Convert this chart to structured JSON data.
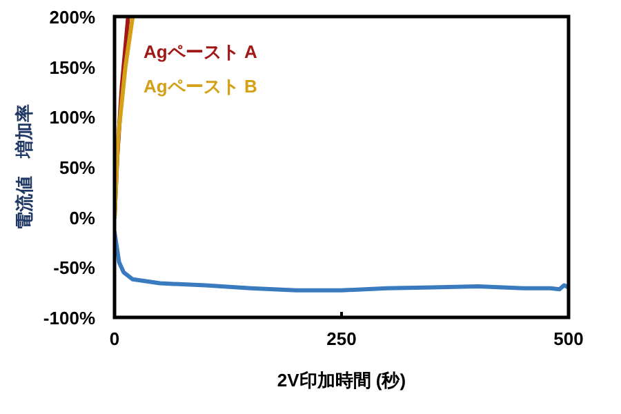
{
  "chart_data": {
    "type": "line",
    "xlabel": "2V印加時間 (秒)",
    "ylabel": "電流値　増加率",
    "xlim": [
      0,
      500
    ],
    "ylim": [
      -100,
      200
    ],
    "xticks": [
      0,
      250,
      500
    ],
    "yticks": [
      {
        "value": -100,
        "label": "-100%"
      },
      {
        "value": -50,
        "label": "-50%"
      },
      {
        "value": 0,
        "label": "0%"
      },
      {
        "value": 50,
        "label": "50%"
      },
      {
        "value": 100,
        "label": "100%"
      },
      {
        "value": 150,
        "label": "150%"
      },
      {
        "value": 200,
        "label": "200%"
      }
    ],
    "grid": false,
    "series": [
      {
        "name": "Agペースト A",
        "color": "#a01818",
        "x": [
          0,
          3,
          8,
          15
        ],
        "values": [
          0,
          60,
          130,
          200
        ]
      },
      {
        "name": "Agペースト B",
        "color": "#d4a017",
        "x": [
          0,
          4,
          12,
          20
        ],
        "values": [
          0,
          80,
          150,
          200
        ]
      },
      {
        "color": "#3a7abf",
        "x": [
          0,
          5,
          10,
          20,
          50,
          100,
          150,
          200,
          250,
          300,
          350,
          400,
          450,
          480,
          490,
          495,
          500
        ],
        "values": [
          -15,
          -45,
          -55,
          -62,
          -66,
          -68,
          -71,
          -73,
          -73,
          -71,
          -70,
          -69,
          -71,
          -71,
          -72,
          -68,
          -70
        ]
      }
    ]
  }
}
